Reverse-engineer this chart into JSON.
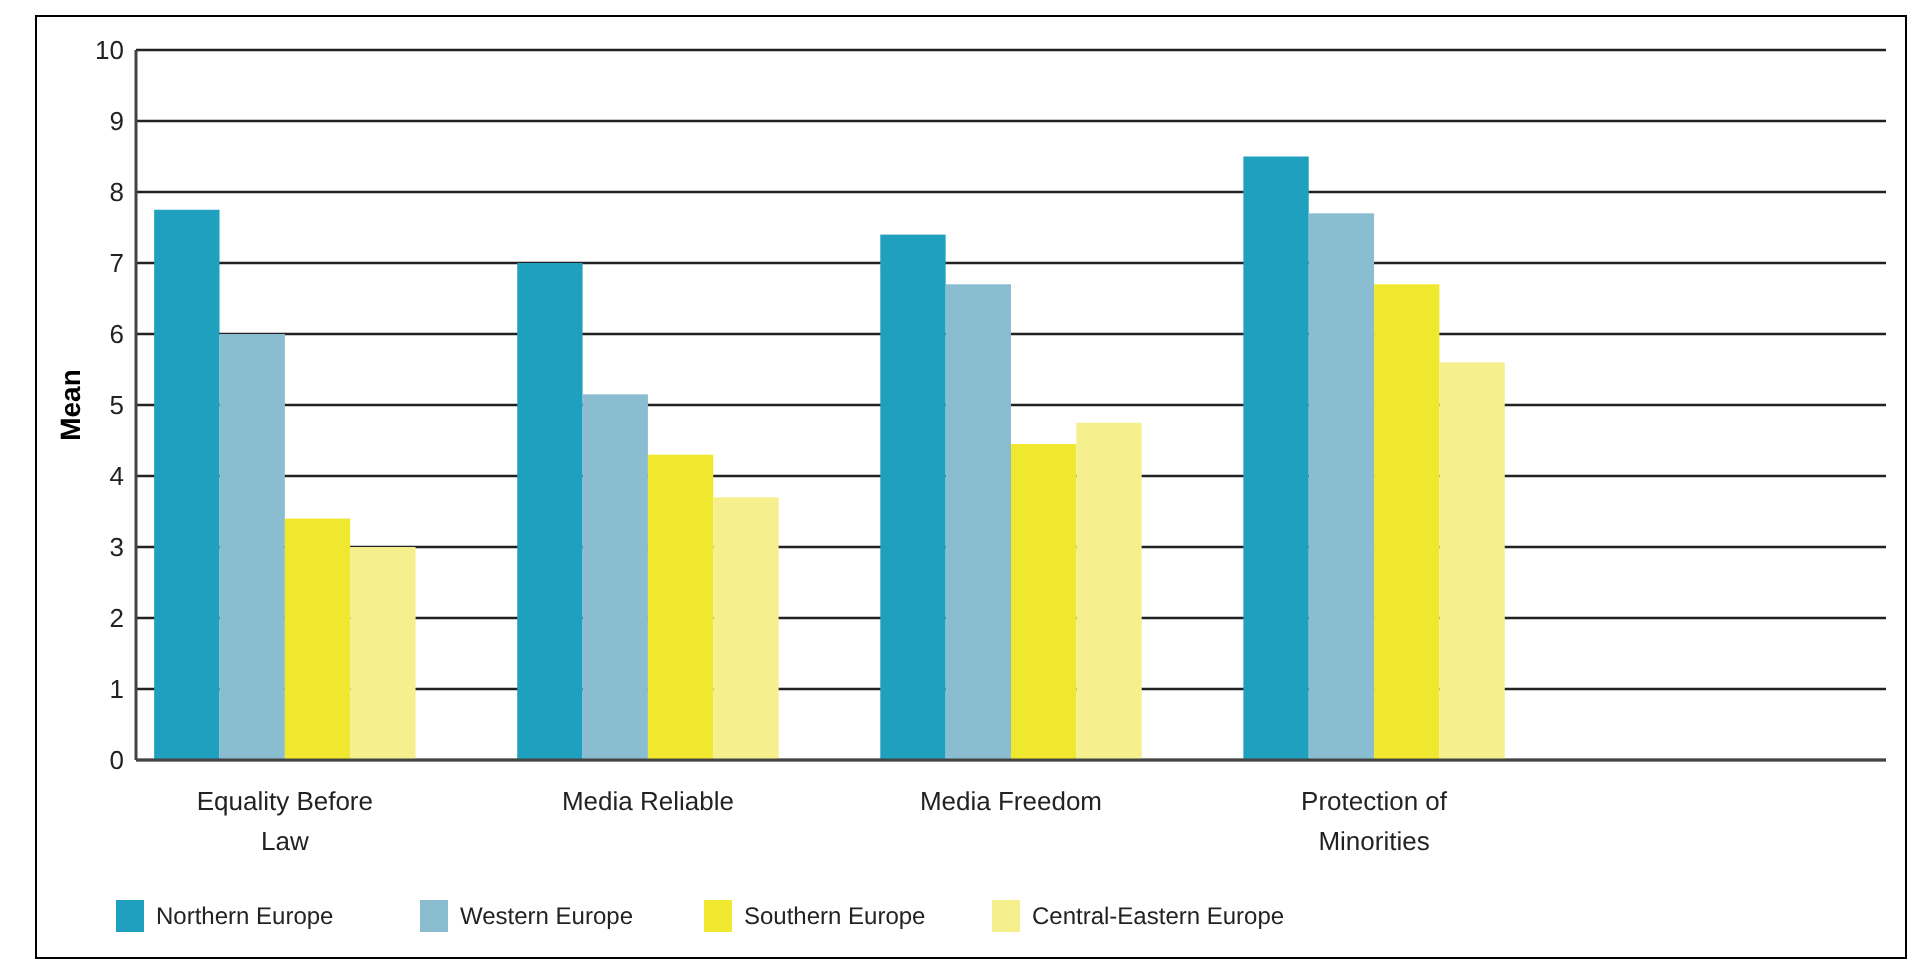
{
  "chart_data": {
    "type": "bar",
    "ylabel": "Mean",
    "categories": [
      "Equality Before Law",
      "Media Reliable",
      "Media Freedom",
      "Protection of Minorities",
      null
    ],
    "series": [
      {
        "name": "Northern Europe",
        "color": "#20a0bf",
        "values": [
          7.75,
          7.0,
          7.4,
          8.5,
          null
        ]
      },
      {
        "name": "Western Europe",
        "color": "#8bbdd1",
        "values": [
          6.0,
          5.15,
          6.7,
          7.7,
          null
        ]
      },
      {
        "name": "Southern Europe",
        "color": "#f0e82e",
        "values": [
          3.4,
          4.3,
          4.45,
          6.7,
          null
        ]
      },
      {
        "name": "Central-Eastern Europe",
        "color": "#f5ef8e",
        "values": [
          3.0,
          3.7,
          4.75,
          5.6,
          null
        ]
      }
    ],
    "ylim": [
      0,
      10
    ],
    "yticks": [
      0,
      1,
      2,
      3,
      4,
      5,
      6,
      7,
      8,
      9,
      10
    ],
    "grid": "y",
    "legend": "bottom"
  }
}
